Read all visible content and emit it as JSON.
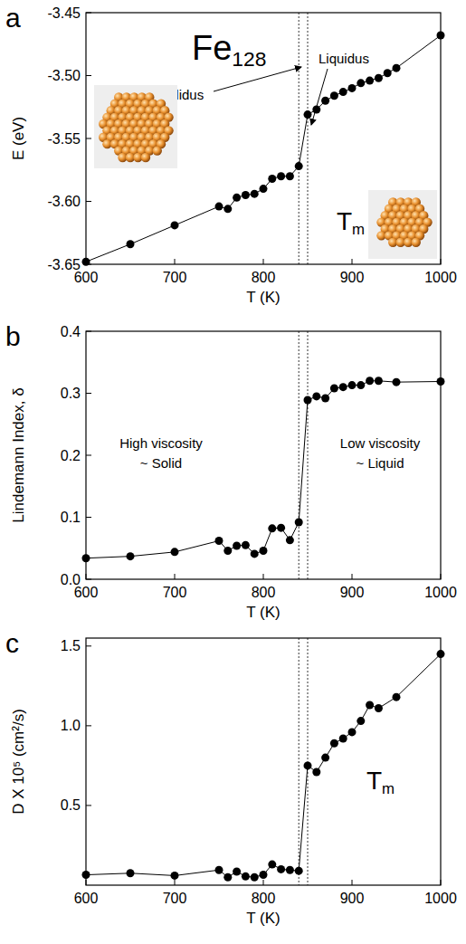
{
  "chart_data": [
    {
      "type": "line",
      "panel_label": "a",
      "inset_title": "Fe128",
      "annotations": [
        "Solidus",
        "Liquidus",
        "Tm"
      ],
      "x_label": "T (K)",
      "y_label": "E (eV)",
      "xlim": [
        600,
        1000
      ],
      "xticks": [
        600,
        700,
        800,
        900,
        1000
      ],
      "ylim": [
        -3.65,
        -3.45
      ],
      "yticks": [
        -3.65,
        {
          "value": -3.6,
          "label": "-3.60"
        },
        -3.55,
        {
          "value": -3.5,
          "label": "-3.50"
        },
        -3.45
      ],
      "reference_lines": [
        840,
        850
      ],
      "marker": "circle",
      "line_style": "solid",
      "x": [
        600,
        650,
        700,
        750,
        760,
        770,
        780,
        790,
        800,
        810,
        820,
        830,
        840,
        850,
        860,
        870,
        880,
        890,
        900,
        910,
        920,
        930,
        940,
        950,
        1000
      ],
      "series": [
        {
          "color": "#000000",
          "values": [
            -3.648,
            -3.634,
            -3.619,
            -3.604,
            -3.606,
            -3.597,
            -3.595,
            -3.594,
            -3.59,
            -3.582,
            -3.58,
            -3.58,
            -3.572,
            -3.531,
            -3.527,
            -3.52,
            -3.516,
            -3.513,
            -3.51,
            -3.506,
            -3.504,
            -3.502,
            -3.498,
            -3.494,
            -3.468
          ]
        }
      ]
    },
    {
      "type": "line",
      "panel_label": "b",
      "annotations": [
        "High viscosity",
        "~ Solid",
        "Low viscosity",
        "~ Liquid"
      ],
      "x_label": "T (K)",
      "y_label": "Lindemann Index, δ",
      "xlim": [
        600,
        1000
      ],
      "xticks": [
        600,
        700,
        800,
        900,
        1000
      ],
      "ylim": [
        0,
        0.4
      ],
      "yticks": [
        {
          "value": 0,
          "label": "0.0"
        },
        0.1,
        0.2,
        0.3,
        0.4
      ],
      "reference_lines": [
        840,
        850
      ],
      "marker": "circle",
      "line_style": "solid",
      "x": [
        600,
        650,
        700,
        750,
        760,
        770,
        780,
        790,
        800,
        810,
        820,
        830,
        840,
        850,
        860,
        870,
        880,
        890,
        900,
        910,
        920,
        930,
        950,
        1000
      ],
      "series": [
        {
          "color": "#000000",
          "values": [
            0.034,
            0.037,
            0.044,
            0.062,
            0.046,
            0.054,
            0.055,
            0.041,
            0.046,
            0.082,
            0.083,
            0.063,
            0.092,
            0.289,
            0.295,
            0.292,
            0.308,
            0.31,
            0.313,
            0.313,
            0.32,
            0.32,
            0.318,
            0.319
          ]
        }
      ]
    },
    {
      "type": "line",
      "panel_label": "c",
      "annotations": [
        "Tm"
      ],
      "x_label": "T (K)",
      "y_label": "D X 10⁵ (cm²/s)",
      "xlim": [
        600,
        1000
      ],
      "xticks": [
        600,
        700,
        800,
        900,
        1000
      ],
      "ylim": [
        0,
        1.55
      ],
      "yticks": [
        0.5,
        {
          "value": 1,
          "label": "1.0"
        },
        1.5
      ],
      "reference_lines": [
        840,
        850
      ],
      "marker": "circle",
      "line_style": "solid",
      "x": [
        600,
        650,
        700,
        750,
        760,
        770,
        780,
        790,
        800,
        810,
        820,
        830,
        840,
        850,
        860,
        870,
        880,
        890,
        900,
        910,
        920,
        930,
        950,
        1000
      ],
      "series": [
        {
          "color": "#000000",
          "values": [
            0.065,
            0.075,
            0.06,
            0.095,
            0.05,
            0.085,
            0.055,
            0.05,
            0.065,
            0.13,
            0.1,
            0.095,
            0.09,
            0.75,
            0.71,
            0.8,
            0.89,
            0.92,
            0.96,
            1.03,
            1.13,
            1.11,
            1.18,
            1.45
          ]
        }
      ]
    }
  ]
}
